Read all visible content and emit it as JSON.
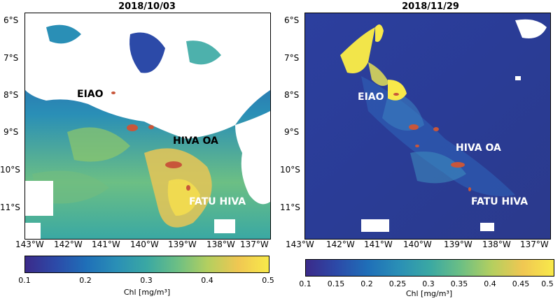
{
  "panels": [
    {
      "title": "2018/10/03",
      "lat_labels": [
        "6°S",
        "7°S",
        "8°S",
        "9°S",
        "10°S",
        "11°S"
      ],
      "lon_labels": [
        "143°W",
        "142°W",
        "141°W",
        "140°W",
        "139°W",
        "138°W",
        "137°W"
      ],
      "places": [
        "EIAO",
        "HIVA OA",
        "FATU HIVA"
      ],
      "colorbar": {
        "label": "Chl [mg/m³]",
        "ticks": [
          "0.1",
          "0.2",
          "0.3",
          "0.4",
          "0.5"
        ],
        "range": [
          0.1,
          0.5
        ]
      }
    },
    {
      "title": "2018/11/29",
      "lat_labels": [
        "6°S",
        "7°S",
        "8°S",
        "9°S",
        "10°S",
        "11°S"
      ],
      "lon_labels": [
        "143°W",
        "142°W",
        "141°W",
        "140°W",
        "139°W",
        "138°W",
        "137°W"
      ],
      "places": [
        "EIAO",
        "HIVA OA",
        "FATU HIVA"
      ],
      "colorbar": {
        "label": "Chl [mg/m³]",
        "ticks": [
          "0.1",
          "0.15",
          "0.2",
          "0.25",
          "0.3",
          "0.35",
          "0.4",
          "0.45",
          "0.5"
        ],
        "range": [
          0.1,
          0.5
        ]
      }
    }
  ],
  "colors": {
    "cmap": [
      "#3b2a8a",
      "#2c4aa8",
      "#1f6fb8",
      "#2a8fb6",
      "#3aa8a3",
      "#6cbf84",
      "#b4cf5f",
      "#f0c752",
      "#f8e94a"
    ],
    "land": "#c8563a",
    "cloud": "#ffffff"
  }
}
